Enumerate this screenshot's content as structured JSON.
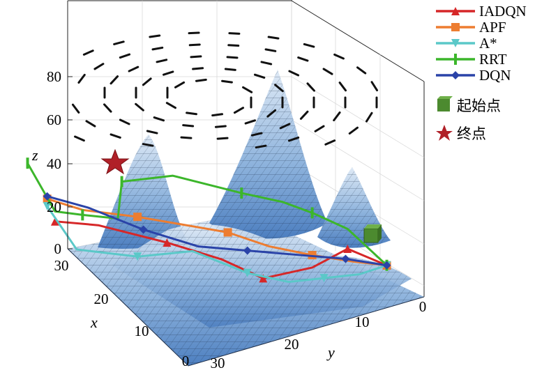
{
  "chart_data": {
    "type": "line",
    "title": "",
    "axes": {
      "x": {
        "label": "x",
        "ticks": [
          "0",
          "10",
          "20",
          "30"
        ],
        "range": [
          0,
          30
        ]
      },
      "y": {
        "label": "y",
        "ticks": [
          "0",
          "10",
          "20",
          "30"
        ],
        "range": [
          0,
          30
        ]
      },
      "z": {
        "label": "z",
        "ticks": [
          "0",
          "20",
          "40",
          "60",
          "80"
        ],
        "range": [
          0,
          90
        ]
      }
    },
    "grid": true,
    "legend_position": "right",
    "series": [
      {
        "name": "IADQN",
        "color": "#d62728",
        "marker": "triangle-up",
        "points": [
          [
            26,
            28,
            23
          ],
          [
            22,
            26,
            20
          ],
          [
            17,
            21,
            14
          ],
          [
            13,
            17,
            8
          ],
          [
            10,
            14,
            1
          ],
          [
            6,
            11,
            5
          ],
          [
            3,
            9,
            12
          ],
          [
            1,
            5,
            8
          ]
        ]
      },
      {
        "name": "APF",
        "color": "#ed7d31",
        "marker": "square",
        "points": [
          [
            27,
            28,
            33
          ],
          [
            24,
            26,
            28
          ],
          [
            20,
            22,
            26
          ],
          [
            16,
            18,
            23
          ],
          [
            13,
            16,
            20
          ],
          [
            10,
            13,
            15
          ],
          [
            6,
            11,
            10
          ],
          [
            3,
            8,
            8
          ],
          [
            1,
            5,
            8
          ]
        ]
      },
      {
        "name": "A*",
        "color": "#5bc8c8",
        "marker": "triangle-down",
        "points": [
          [
            27,
            28,
            30
          ],
          [
            24,
            27,
            11
          ],
          [
            20,
            22,
            10
          ],
          [
            16,
            18,
            13
          ],
          [
            12,
            14,
            5
          ],
          [
            9,
            11,
            2
          ],
          [
            6,
            9,
            3
          ],
          [
            3,
            7,
            4
          ],
          [
            1,
            5,
            8
          ]
        ]
      },
      {
        "name": "RRT",
        "color": "#3cb62b",
        "marker": "vertical-bar",
        "points": [
          [
            28,
            30,
            46
          ],
          [
            26,
            28,
            27
          ],
          [
            24,
            26,
            26
          ],
          [
            21,
            24,
            24
          ],
          [
            22,
            22,
            42
          ],
          [
            17,
            20,
            42
          ],
          [
            12,
            15,
            36
          ],
          [
            9,
            12,
            33
          ],
          [
            6,
            11,
            27
          ],
          [
            3,
            9,
            20
          ],
          [
            1,
            5,
            8
          ]
        ]
      },
      {
        "name": "DQN",
        "color": "#2a43a8",
        "marker": "diamond",
        "points": [
          [
            27,
            28,
            34
          ],
          [
            24,
            25,
            30
          ],
          [
            20,
            21,
            22
          ],
          [
            16,
            17,
            16
          ],
          [
            12,
            14,
            14
          ],
          [
            8,
            11,
            12
          ],
          [
            4,
            8,
            10
          ],
          [
            1,
            5,
            8
          ]
        ]
      }
    ],
    "start": {
      "label": "起始点",
      "marker": "green-cube",
      "color": "#4c8a2f",
      "point": [
        1,
        5,
        8
      ]
    },
    "goal": {
      "label": "终点",
      "marker": "red-star",
      "color": "#b02028",
      "point": [
        27,
        28,
        42
      ]
    },
    "surface": {
      "type": "terrain-mesh",
      "color": "#8fb4dd",
      "peaks_z": [
        68,
        88,
        55,
        42
      ]
    },
    "vector_field": {
      "type": "swirl",
      "plane_z": 80,
      "color": "#111111"
    }
  }
}
